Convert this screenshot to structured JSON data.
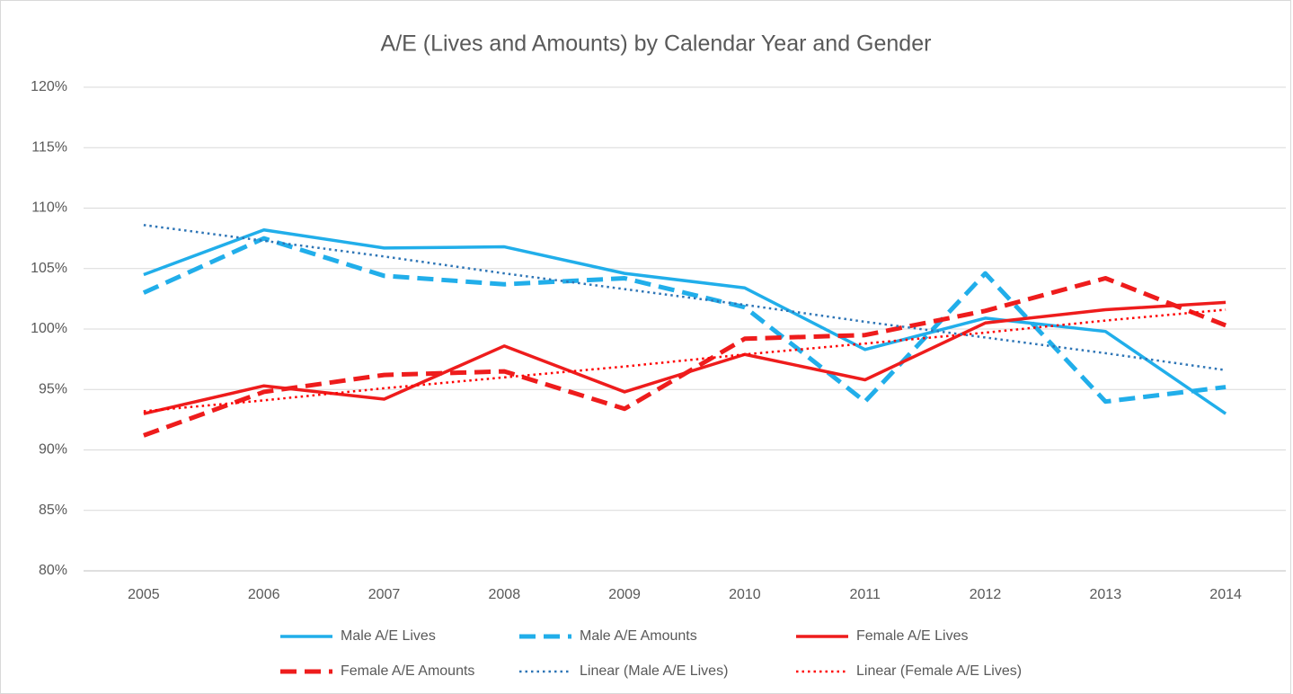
{
  "chart_data": {
    "type": "line",
    "title": "A/E (Lives and Amounts) by Calendar Year and Gender",
    "categories": [
      "2005",
      "2006",
      "2007",
      "2008",
      "2009",
      "2010",
      "2011",
      "2012",
      "2013",
      "2014"
    ],
    "ylim": [
      80,
      120
    ],
    "yticks": [
      {
        "value": 80,
        "label": "80%"
      },
      {
        "value": 85,
        "label": "85%"
      },
      {
        "value": 90,
        "label": "90%"
      },
      {
        "value": 95,
        "label": "95%"
      },
      {
        "value": 100,
        "label": "100%"
      },
      {
        "value": 105,
        "label": "105%"
      },
      {
        "value": 110,
        "label": "110%"
      },
      {
        "value": 115,
        "label": "115%"
      },
      {
        "value": 120,
        "label": "120%"
      }
    ],
    "grid": true,
    "legend": "bottom",
    "series": [
      {
        "name": "Male A/E Lives",
        "color": "#21aeea",
        "dash": "solid",
        "values": [
          104.5,
          108.2,
          106.7,
          106.8,
          104.6,
          103.4,
          98.3,
          100.9,
          99.8,
          93.0
        ]
      },
      {
        "name": "Male A/E Amounts",
        "color": "#21aeea",
        "dash": "dashed",
        "values": [
          103.0,
          107.5,
          104.4,
          103.7,
          104.2,
          101.8,
          94.0,
          104.6,
          94.0,
          95.2
        ]
      },
      {
        "name": "Female A/E Lives",
        "color": "#ee1c1c",
        "dash": "solid",
        "values": [
          93.0,
          95.3,
          94.2,
          98.6,
          94.8,
          97.9,
          95.8,
          100.5,
          101.6,
          102.2
        ]
      },
      {
        "name": "Female A/E Amounts",
        "color": "#ee1c1c",
        "dash": "dashed",
        "values": [
          91.2,
          94.8,
          96.2,
          96.5,
          93.4,
          99.2,
          99.5,
          101.5,
          104.2,
          100.3
        ]
      },
      {
        "name": "Linear (Male A/E Lives)",
        "color": "#2e75b6",
        "dash": "dotted",
        "values": [
          108.6,
          107.3,
          106.0,
          104.6,
          103.3,
          102.0,
          100.6,
          99.3,
          98.0,
          96.6
        ]
      },
      {
        "name": "Linear (Female A/E Lives)",
        "color": "#ff0000",
        "dash": "dotted",
        "values": [
          93.2,
          94.1,
          95.1,
          96.0,
          96.9,
          97.9,
          98.8,
          99.7,
          100.7,
          101.6
        ]
      }
    ]
  }
}
